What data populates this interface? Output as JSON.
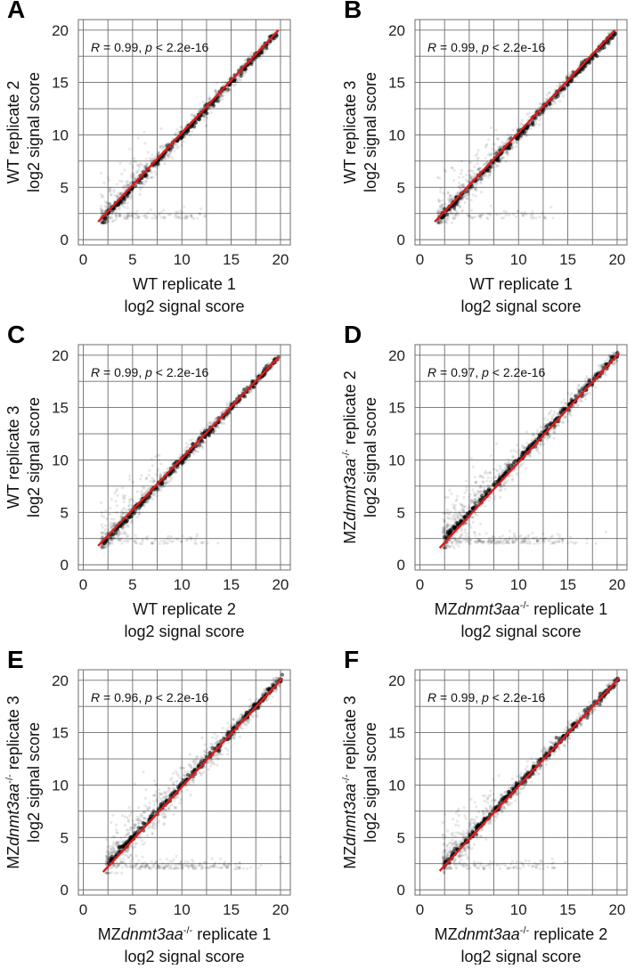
{
  "chart_data": [
    {
      "panel": "A",
      "type": "scatter",
      "xlabel": [
        "WT replicate 1",
        "log2 signal score"
      ],
      "ylabel": [
        "WT replicate 2",
        "log2 signal score"
      ],
      "annotation": {
        "r_label": "R",
        "r_value": " = 0.99, ",
        "p_label": "p",
        "p_value": " < 2.2e-16"
      },
      "xlim": [
        -0.5,
        21
      ],
      "ylim": [
        -0.5,
        21
      ],
      "xticks": [
        0,
        5,
        10,
        15,
        20
      ],
      "yticks": [
        0,
        5,
        10,
        15,
        20
      ],
      "grid": true,
      "series": [
        {
          "points": "dense cloud of points along the diagonal from about (2, 2) to (19.8, 19.8), with scatter up to about y = 6 and x = 8 at low values",
          "color": "#000000"
        },
        {
          "name": "fit",
          "type": "line",
          "x": [
            1.5,
            19.8
          ],
          "y": [
            1.7,
            20.0
          ],
          "color": "#e01b1b"
        }
      ]
    },
    {
      "panel": "B",
      "type": "scatter",
      "xlabel": [
        "WT replicate 1",
        "log2 signal score"
      ],
      "ylabel": [
        "WT replicate 3",
        "log2 signal score"
      ],
      "annotation": {
        "r_label": "R",
        "r_value": " = 0.99, ",
        "p_label": "p",
        "p_value": " < 2.2e-16"
      },
      "xlim": [
        -0.5,
        21
      ],
      "ylim": [
        -0.5,
        21
      ],
      "xticks": [
        0,
        5,
        10,
        15,
        20
      ],
      "yticks": [
        0,
        5,
        10,
        15,
        20
      ],
      "grid": true,
      "series": [
        {
          "points": "dense cloud of points along the diagonal from about (2, 2) to (19.8, 19.8)",
          "color": "#000000"
        },
        {
          "name": "fit",
          "type": "line",
          "x": [
            1.5,
            19.8
          ],
          "y": [
            1.7,
            20.0
          ],
          "color": "#e01b1b"
        }
      ]
    },
    {
      "panel": "C",
      "type": "scatter",
      "xlabel": [
        "WT replicate 2",
        "log2 signal score"
      ],
      "ylabel": [
        "WT replicate 3",
        "log2 signal score"
      ],
      "annotation": {
        "r_label": "R",
        "r_value": " = 0.99, ",
        "p_label": "p",
        "p_value": " < 2.2e-16"
      },
      "xlim": [
        -0.5,
        21
      ],
      "ylim": [
        -0.5,
        21
      ],
      "xticks": [
        0,
        5,
        10,
        15,
        20
      ],
      "yticks": [
        0,
        5,
        10,
        15,
        20
      ],
      "grid": true,
      "series": [
        {
          "points": "dense cloud of points along the diagonal from about (2, 2) to (19.8, 19.8)",
          "color": "#000000"
        },
        {
          "name": "fit",
          "type": "line",
          "x": [
            1.5,
            19.8
          ],
          "y": [
            1.8,
            19.8
          ],
          "color": "#e01b1b"
        }
      ]
    },
    {
      "panel": "D",
      "type": "scatter",
      "xlabel": [
        "MZ",
        "dnmt3aa",
        "-/-",
        " replicate 1",
        "log2 signal score"
      ],
      "ylabel": [
        "MZ",
        "dnmt3aa",
        "-/-",
        " replicate 2",
        "log2 signal score"
      ],
      "annotation": {
        "r_label": "R",
        "r_value": " = 0.97, ",
        "p_label": "p",
        "p_value": " < 2.2e-16"
      },
      "xlim": [
        -0.5,
        21
      ],
      "ylim": [
        -0.5,
        21
      ],
      "xticks": [
        0,
        5,
        10,
        15,
        20
      ],
      "yticks": [
        0,
        5,
        10,
        15,
        20
      ],
      "grid": true,
      "series": [
        {
          "points": "dense cloud along the diagonal from about (2, 2) to (20, 20), wider scatter below the diagonal out to x about 16 near y = 2",
          "color": "#000000"
        },
        {
          "name": "fit",
          "type": "line",
          "x": [
            2.0,
            20.2
          ],
          "y": [
            1.6,
            20.2
          ],
          "color": "#e01b1b"
        }
      ]
    },
    {
      "panel": "E",
      "type": "scatter",
      "xlabel": [
        "MZ",
        "dnmt3aa",
        "-/-",
        " replicate 1",
        "log2 signal score"
      ],
      "ylabel": [
        "MZ",
        "dnmt3aa",
        "-/-",
        " replicate 3",
        "log2 signal score"
      ],
      "annotation": {
        "r_label": "R",
        "r_value": " = 0.96, ",
        "p_label": "p",
        "p_value": " < 2.2e-16"
      },
      "xlim": [
        -0.5,
        21
      ],
      "ylim": [
        -0.5,
        21
      ],
      "xticks": [
        0,
        5,
        10,
        15,
        20
      ],
      "yticks": [
        0,
        5,
        10,
        15,
        20
      ],
      "grid": true,
      "series": [
        {
          "points": "dense cloud along the diagonal from about (2, 2) to (20, 20), wide scatter below the diagonal out to x about 15 near y = 2",
          "color": "#000000"
        },
        {
          "name": "fit",
          "type": "line",
          "x": [
            2.0,
            20.2
          ],
          "y": [
            1.7,
            20.2
          ],
          "color": "#e01b1b"
        }
      ]
    },
    {
      "panel": "F",
      "type": "scatter",
      "xlabel": [
        "MZ",
        "dnmt3aa",
        "-/-",
        " replicate 2",
        "log2 signal score"
      ],
      "ylabel": [
        "MZ",
        "dnmt3aa",
        "-/-",
        " replicate 3",
        "log2 signal score"
      ],
      "annotation": {
        "r_label": "R",
        "r_value": " = 0.99, ",
        "p_label": "p",
        "p_value": " < 2.2e-16"
      },
      "xlim": [
        -0.5,
        21
      ],
      "ylim": [
        -0.5,
        21
      ],
      "xticks": [
        0,
        5,
        10,
        15,
        20
      ],
      "yticks": [
        0,
        5,
        10,
        15,
        20
      ],
      "grid": true,
      "series": [
        {
          "points": "dense cloud along the diagonal from about (2, 2) to (20, 20)",
          "color": "#000000"
        },
        {
          "name": "fit",
          "type": "line",
          "x": [
            2.0,
            20.2
          ],
          "y": [
            1.8,
            20.2
          ],
          "color": "#e01b1b"
        }
      ]
    }
  ]
}
